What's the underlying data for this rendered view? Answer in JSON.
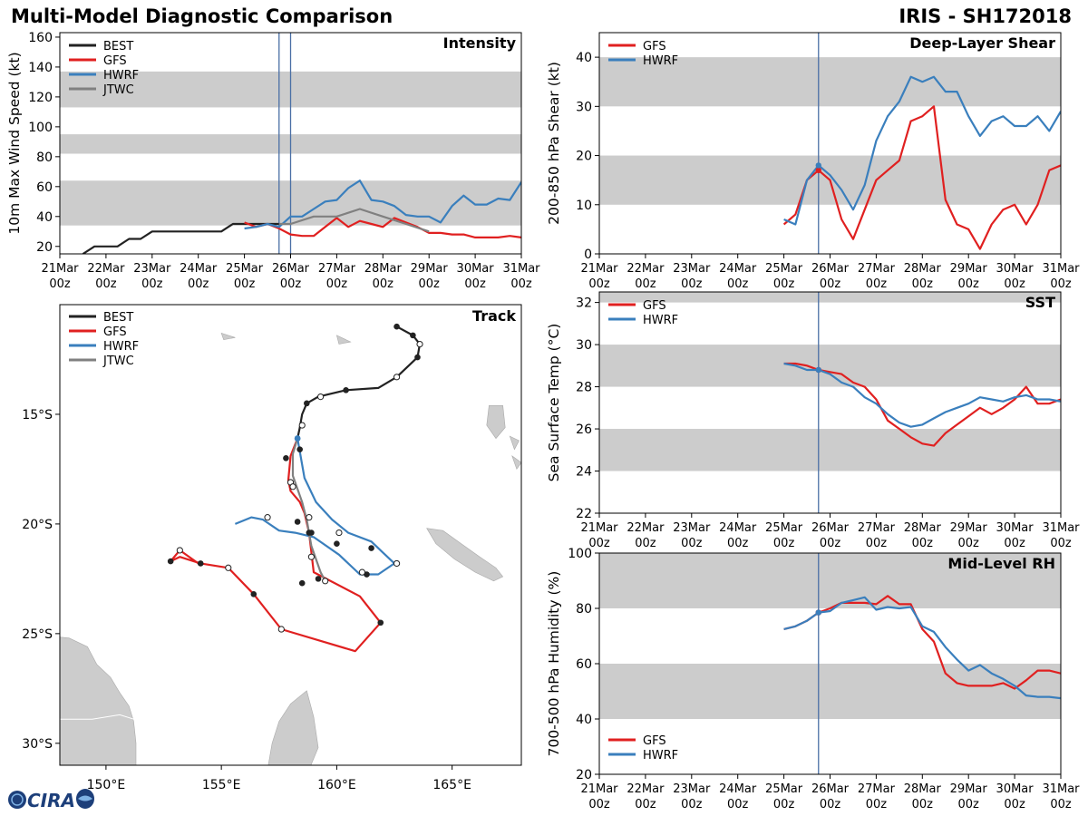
{
  "header": {
    "left_title": "Multi-Model Diagnostic Comparison",
    "right_title": "IRIS - SH172018"
  },
  "colors": {
    "BEST": "#222222",
    "GFS": "#e02020",
    "HWRF": "#3a7fbd",
    "JTWC": "#808080",
    "band": "#cccccc",
    "vline": "#4a6fa5",
    "land": "#cccccc"
  },
  "time_axis": {
    "labels": [
      "21Mar 00z",
      "22Mar 00z",
      "23Mar 00z",
      "24Mar 00z",
      "25Mar 00z",
      "26Mar 00z",
      "27Mar 00z",
      "28Mar 00z",
      "29Mar 00z",
      "30Mar 00z",
      "31Mar 00z"
    ],
    "current_time": 4.75
  },
  "logo": {
    "text": "CIRA"
  },
  "chart_data": [
    {
      "id": "intensity",
      "type": "line",
      "title": "Intensity",
      "ylabel": "10m Max Wind Speed (kt)",
      "ylim": [
        15,
        163
      ],
      "yticks": [
        20,
        40,
        60,
        80,
        100,
        120,
        140,
        160
      ],
      "bands": [
        [
          34,
          64
        ],
        [
          82,
          95
        ],
        [
          113,
          137
        ]
      ],
      "vlines": [
        4.75,
        5.0
      ],
      "legend": [
        "BEST",
        "GFS",
        "HWRF",
        "JTWC"
      ],
      "series": [
        {
          "name": "BEST",
          "x": [
            0.5,
            0.75,
            1.0,
            1.25,
            1.5,
            1.75,
            2.0,
            2.25,
            2.5,
            2.75,
            3.0,
            3.25,
            3.5,
            3.75,
            4.0,
            4.25,
            4.5,
            4.75
          ],
          "y": [
            15,
            20,
            20,
            20,
            25,
            25,
            30,
            30,
            30,
            30,
            30,
            30,
            30,
            35,
            35,
            35,
            35,
            35
          ]
        },
        {
          "name": "GFS",
          "x": [
            4.0,
            4.25,
            4.5,
            4.75,
            5.0,
            5.25,
            5.5,
            5.75,
            6.0,
            6.25,
            6.5,
            6.75,
            7.0,
            7.25,
            7.5,
            7.75,
            8.0,
            8.25,
            8.5,
            8.75,
            9.0,
            9.25,
            9.5,
            9.75,
            10.0
          ],
          "y": [
            36,
            33,
            35,
            32,
            28,
            27,
            27,
            33,
            39,
            33,
            37,
            35,
            33,
            39,
            36,
            33,
            29,
            29,
            28,
            28,
            26,
            26,
            26,
            27,
            26
          ]
        },
        {
          "name": "HWRF",
          "x": [
            4.0,
            4.25,
            4.5,
            4.75,
            5.0,
            5.25,
            5.5,
            5.75,
            6.0,
            6.25,
            6.5,
            6.75,
            7.0,
            7.25,
            7.5,
            7.75,
            8.0,
            8.25,
            8.5,
            8.75,
            9.0,
            9.25,
            9.5,
            9.75,
            10.0
          ],
          "y": [
            32,
            33,
            35,
            33,
            40,
            40,
            45,
            50,
            51,
            59,
            64,
            51,
            50,
            47,
            41,
            40,
            40,
            36,
            47,
            54,
            48,
            48,
            52,
            51,
            63
          ]
        },
        {
          "name": "JTWC",
          "x": [
            4.75,
            5.0,
            5.5,
            6.0,
            6.5,
            7.0,
            7.5,
            8.0
          ],
          "y": [
            35,
            35,
            40,
            40,
            45,
            40,
            35,
            30
          ]
        }
      ]
    },
    {
      "id": "shear",
      "type": "line",
      "title": "Deep-Layer Shear",
      "ylabel": "200-850 hPa Shear (kt)",
      "ylim": [
        0,
        45
      ],
      "yticks": [
        0,
        10,
        20,
        30,
        40
      ],
      "bands": [
        [
          10,
          20
        ],
        [
          30,
          40
        ]
      ],
      "vlines": [
        4.75
      ],
      "legend": [
        "GFS",
        "HWRF"
      ],
      "series": [
        {
          "name": "GFS",
          "x": [
            4.0,
            4.25,
            4.5,
            4.75,
            5.0,
            5.25,
            5.5,
            5.75,
            6.0,
            6.25,
            6.5,
            6.75,
            7.0,
            7.25,
            7.5,
            7.75,
            8.0,
            8.25,
            8.5,
            8.75,
            9.0,
            9.25,
            9.5,
            9.75,
            10.0
          ],
          "y": [
            6,
            8,
            15,
            17,
            15,
            7,
            3,
            9,
            15,
            17,
            19,
            27,
            28,
            30,
            11,
            6,
            5,
            1,
            6,
            9,
            10,
            6,
            10,
            17,
            18
          ]
        },
        {
          "name": "HWRF",
          "x": [
            4.0,
            4.25,
            4.5,
            4.75,
            5.0,
            5.25,
            5.5,
            5.75,
            6.0,
            6.25,
            6.5,
            6.75,
            7.0,
            7.25,
            7.5,
            7.75,
            8.0,
            8.25,
            8.5,
            8.75,
            9.0,
            9.25,
            9.5,
            9.75,
            10.0
          ],
          "y": [
            7,
            6,
            15,
            18,
            16,
            13,
            9,
            14,
            23,
            28,
            31,
            36,
            35,
            36,
            33,
            33,
            28,
            24,
            27,
            28,
            26,
            26,
            28,
            25,
            29
          ]
        }
      ]
    },
    {
      "id": "sst",
      "type": "line",
      "title": "SST",
      "ylabel": "Sea Surface Temp (°C)",
      "ylim": [
        22,
        32.5
      ],
      "yticks": [
        22,
        24,
        26,
        28,
        30,
        32
      ],
      "bands": [
        [
          24,
          26
        ],
        [
          28,
          30
        ],
        [
          32,
          32.5
        ]
      ],
      "vlines": [
        4.75
      ],
      "legend": [
        "GFS",
        "HWRF"
      ],
      "series": [
        {
          "name": "GFS",
          "x": [
            4.0,
            4.25,
            4.5,
            4.75,
            5.0,
            5.25,
            5.5,
            5.75,
            6.0,
            6.25,
            6.5,
            6.75,
            7.0,
            7.25,
            7.5,
            7.75,
            8.0,
            8.25,
            8.5,
            8.75,
            9.0,
            9.25,
            9.5,
            9.75,
            10.0
          ],
          "y": [
            29.1,
            29.1,
            29.0,
            28.8,
            28.7,
            28.6,
            28.2,
            28.0,
            27.4,
            26.4,
            26.0,
            25.6,
            25.3,
            25.2,
            25.8,
            26.2,
            26.6,
            27.0,
            26.7,
            27.0,
            27.4,
            28.0,
            27.2,
            27.2,
            27.4
          ]
        },
        {
          "name": "HWRF",
          "x": [
            4.0,
            4.25,
            4.5,
            4.75,
            5.0,
            5.25,
            5.5,
            5.75,
            6.0,
            6.25,
            6.5,
            6.75,
            7.0,
            7.25,
            7.5,
            7.75,
            8.0,
            8.25,
            8.5,
            8.75,
            9.0,
            9.25,
            9.5,
            9.75,
            10.0
          ],
          "y": [
            29.1,
            29.0,
            28.8,
            28.8,
            28.6,
            28.2,
            28.0,
            27.5,
            27.2,
            26.7,
            26.3,
            26.1,
            26.2,
            26.5,
            26.8,
            27.0,
            27.2,
            27.5,
            27.4,
            27.3,
            27.5,
            27.6,
            27.4,
            27.4,
            27.3
          ]
        }
      ]
    },
    {
      "id": "rh",
      "type": "line",
      "title": "Mid-Level RH",
      "ylabel": "700-500 hPa Humidity (%)",
      "ylim": [
        20,
        100
      ],
      "yticks": [
        20,
        40,
        60,
        80,
        100
      ],
      "bands": [
        [
          40,
          60
        ],
        [
          80,
          100
        ]
      ],
      "vlines": [
        4.75
      ],
      "legend": [
        "GFS",
        "HWRF"
      ],
      "series": [
        {
          "name": "GFS",
          "x": [
            4.0,
            4.25,
            4.5,
            4.75,
            5.0,
            5.25,
            5.5,
            5.75,
            6.0,
            6.25,
            6.5,
            6.75,
            7.0,
            7.25,
            7.5,
            7.75,
            8.0,
            8.25,
            8.5,
            8.75,
            9.0,
            9.25,
            9.5,
            9.75,
            10.0
          ],
          "y": [
            72.5,
            73.5,
            75.5,
            78.5,
            80,
            82,
            82,
            82,
            81.5,
            84.5,
            81.5,
            81.5,
            72.5,
            68,
            56.5,
            53,
            52,
            52,
            52,
            53,
            51,
            54,
            57.5,
            57.5,
            56.5
          ]
        },
        {
          "name": "HWRF",
          "x": [
            4.0,
            4.25,
            4.5,
            4.75,
            5.0,
            5.25,
            5.5,
            5.75,
            6.0,
            6.25,
            6.5,
            6.75,
            7.0,
            7.25,
            7.5,
            7.75,
            8.0,
            8.25,
            8.5,
            8.75,
            9.0,
            9.25,
            9.5,
            9.75,
            10.0
          ],
          "y": [
            72.5,
            73.5,
            75.5,
            78.5,
            79,
            82,
            83,
            84,
            79.5,
            80.5,
            80,
            80.5,
            73.5,
            71.5,
            66,
            61.5,
            57.5,
            59.5,
            56.5,
            54.5,
            52,
            48.5,
            48,
            48,
            47.5
          ]
        }
      ]
    },
    {
      "id": "track",
      "type": "line",
      "title": "Track",
      "xlim": [
        148.0,
        168.0
      ],
      "ylim": [
        -31.0,
        -10.0
      ],
      "xticks": [
        150,
        155,
        160,
        165
      ],
      "xticklabels": [
        "150°E",
        "155°E",
        "160°E",
        "165°E"
      ],
      "yticks": [
        -15,
        -20,
        -25,
        -30
      ],
      "yticklabels": [
        "15°S",
        "20°S",
        "25°S",
        "30°S"
      ],
      "legend": [
        "BEST",
        "GFS",
        "HWRF",
        "JTWC"
      ],
      "series": [
        {
          "name": "BEST",
          "lon": [
            162.6,
            163.3,
            163.6,
            163.5,
            162.6,
            161.8,
            160.4,
            159.2,
            158.7,
            158.5,
            158.4,
            158.3
          ],
          "lat": [
            -11.0,
            -11.4,
            -11.8,
            -12.4,
            -13.3,
            -13.8,
            -13.9,
            -14.2,
            -14.5,
            -15.0,
            -15.6,
            -16.1
          ]
        },
        {
          "name": "GFS",
          "lon": [
            158.3,
            158.0,
            157.9,
            158.0,
            158.4,
            158.6,
            158.8,
            159.0,
            161.0,
            161.9,
            160.8,
            157.6,
            156.4,
            155.3,
            154.1,
            153.2,
            152.8,
            153.2,
            154.0
          ],
          "lat": [
            -16.1,
            -16.9,
            -18.0,
            -18.5,
            -19.0,
            -19.5,
            -20.4,
            -22.2,
            -23.3,
            -24.5,
            -25.8,
            -24.8,
            -23.2,
            -22.0,
            -21.8,
            -21.5,
            -21.7,
            -21.2,
            -21.8
          ]
        },
        {
          "name": "HWRF",
          "lon": [
            158.3,
            158.4,
            158.6,
            159.1,
            159.8,
            160.5,
            161.5,
            162.0,
            162.5,
            161.8,
            161.0,
            160.1,
            159.0,
            158.2,
            157.5,
            156.8,
            156.3,
            155.6
          ],
          "lat": [
            -16.1,
            -16.7,
            -17.9,
            -19.0,
            -19.8,
            -20.4,
            -20.8,
            -21.3,
            -21.8,
            -22.3,
            -22.3,
            -21.4,
            -20.6,
            -20.4,
            -20.3,
            -19.8,
            -19.7,
            -20.0
          ]
        },
        {
          "name": "JTWC",
          "lon": [
            158.3,
            158.1,
            158.1,
            158.3,
            158.5,
            158.7,
            158.9,
            159.3,
            159.5
          ],
          "lat": [
            -16.1,
            -16.8,
            -17.8,
            -18.4,
            -19.0,
            -19.8,
            -21.0,
            -22.2,
            -22.6
          ]
        }
      ],
      "markers": {
        "BEST": {
          "filled": [
            [
              162.6,
              -11.0
            ],
            [
              163.3,
              -11.4
            ],
            [
              163.5,
              -12.4
            ],
            [
              160.4,
              -13.9
            ],
            [
              158.7,
              -14.5
            ],
            [
              157.8,
              -17.0
            ]
          ],
          "open": [
            [
              163.6,
              -11.8
            ],
            [
              162.6,
              -13.3
            ],
            [
              159.3,
              -14.2
            ],
            [
              158.5,
              -15.5
            ]
          ]
        },
        "GFS": {
          "filled": [
            [
              152.8,
              -21.7
            ],
            [
              154.1,
              -21.8
            ],
            [
              156.4,
              -23.2
            ],
            [
              161.9,
              -24.5
            ]
          ],
          "open": [
            [
              153.2,
              -21.2
            ],
            [
              155.3,
              -22.0
            ],
            [
              157.6,
              -24.8
            ]
          ]
        },
        "HWRF": {
          "filled": [
            [
              161.3,
              -22.3
            ],
            [
              161.5,
              -21.1
            ],
            [
              160.0,
              -20.9
            ],
            [
              158.8,
              -20.4
            ],
            [
              158.4,
              -16.6
            ]
          ],
          "open": [
            [
              162.6,
              -21.8
            ],
            [
              161.1,
              -22.2
            ],
            [
              160.1,
              -20.4
            ],
            [
              158.8,
              -19.7
            ],
            [
              157.0,
              -19.7
            ]
          ]
        },
        "JTWC": {
          "filled": [
            [
              158.3,
              -19.9
            ],
            [
              158.9,
              -20.4
            ],
            [
              158.5,
              -22.7
            ],
            [
              159.2,
              -22.5
            ]
          ],
          "open": [
            [
              158.0,
              -18.1
            ],
            [
              158.1,
              -18.3
            ],
            [
              158.9,
              -21.5
            ],
            [
              159.5,
              -22.6
            ]
          ]
        }
      }
    }
  ]
}
